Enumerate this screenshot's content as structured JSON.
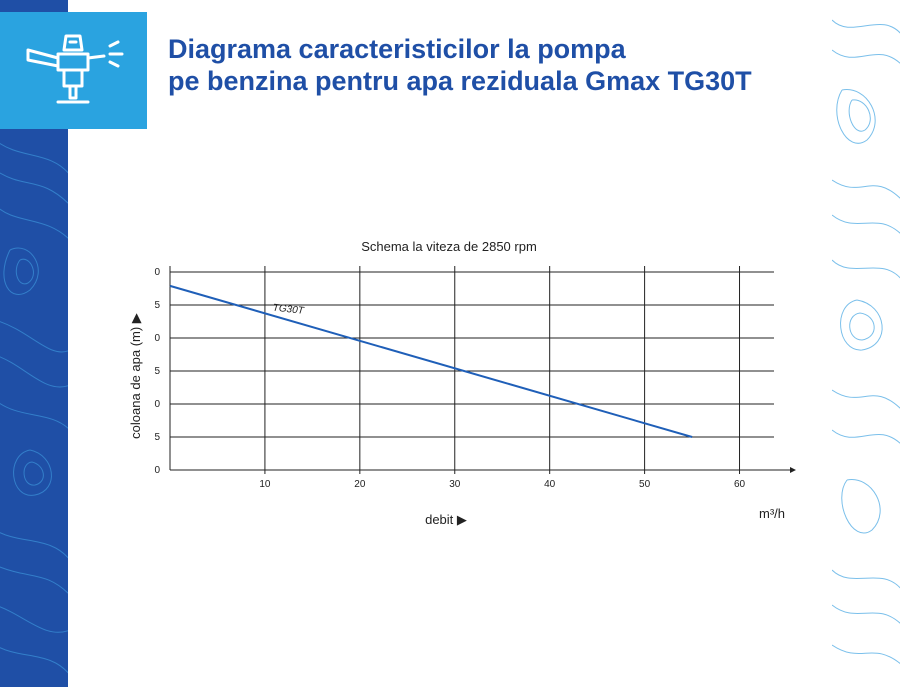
{
  "header": {
    "title_line1": "Diagrama caracteristicilor la pompa",
    "title_line2": "pe benzina pentru apa reziduala Gmax TG30T",
    "icon": "pump-sprinkler-icon"
  },
  "colors": {
    "brand_blue": "#1f4fa6",
    "icon_bg": "#2aa3e0",
    "curve": "#1f5fb8"
  },
  "chart_data": {
    "type": "line",
    "title": "Schema la viteza de 2850 rpm",
    "xlabel": "debit ▶",
    "x_unit": "m³/h",
    "ylabel": "coloana de apa (m) ▶",
    "x_ticks": [
      "10",
      "20",
      "30",
      "40",
      "50",
      "60"
    ],
    "y_ticks": [
      "0",
      "5",
      "0",
      "5",
      "0",
      "5",
      "0"
    ],
    "xlim": [
      0,
      63
    ],
    "grid": true,
    "series": [
      {
        "name": "TG30T",
        "x": [
          0,
          55
        ],
        "y": [
          27.9,
          5.0
        ]
      }
    ]
  }
}
